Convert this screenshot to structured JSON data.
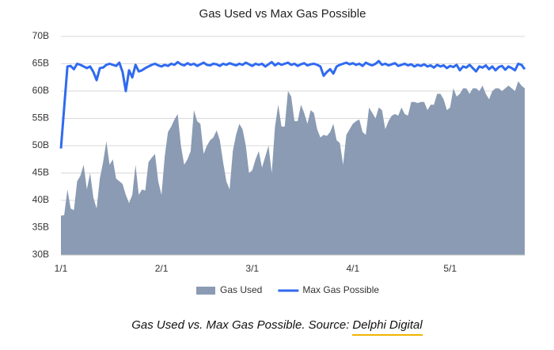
{
  "chart_data": {
    "type": "area-line",
    "title": "Gas Used vs Max Gas Possible",
    "categories": [
      "1/1",
      null,
      null,
      null,
      null,
      null,
      null,
      null,
      null,
      null,
      null,
      null,
      null,
      null,
      null,
      null,
      null,
      null,
      null,
      null,
      null,
      null,
      null,
      null,
      null,
      null,
      null,
      null,
      null,
      null,
      null,
      "2/1",
      null,
      null,
      null,
      null,
      null,
      null,
      null,
      null,
      null,
      null,
      null,
      null,
      null,
      null,
      null,
      null,
      null,
      null,
      null,
      null,
      null,
      null,
      null,
      null,
      null,
      null,
      null,
      "3/1",
      null,
      null,
      null,
      null,
      null,
      null,
      null,
      null,
      null,
      null,
      null,
      null,
      null,
      null,
      null,
      null,
      null,
      null,
      null,
      null,
      null,
      null,
      null,
      null,
      null,
      null,
      null,
      null,
      null,
      null,
      "4/1",
      null,
      null,
      null,
      null,
      null,
      null,
      null,
      null,
      null,
      null,
      null,
      null,
      null,
      null,
      null,
      null,
      null,
      null,
      null,
      null,
      null,
      null,
      null,
      null,
      null,
      null,
      null,
      null,
      null,
      "5/1",
      null,
      null,
      null,
      null,
      null,
      null,
      null,
      null,
      null,
      null,
      null,
      null,
      null,
      null,
      null,
      null,
      null,
      null,
      null,
      null,
      null,
      null,
      null
    ],
    "series": [
      {
        "name": "Gas Used",
        "kind": "area",
        "color": "#8a9bb3",
        "values": [
          37.2,
          37.3,
          42,
          38.5,
          38.2,
          43.5,
          44.5,
          46.5,
          42,
          45,
          40.5,
          38.5,
          44,
          47,
          50.8,
          46.5,
          47.5,
          44,
          43.5,
          43,
          41,
          39.5,
          41,
          46.5,
          41,
          42,
          41.8,
          47,
          47.8,
          48.5,
          43.5,
          41,
          48,
          52.5,
          53.5,
          54.8,
          55.8,
          50,
          46.5,
          47.5,
          49,
          56.5,
          54.5,
          54,
          48.5,
          50,
          51,
          51.5,
          52.8,
          51,
          47,
          43.5,
          42,
          49,
          52,
          54,
          53,
          50,
          45,
          45.5,
          47.5,
          49,
          46,
          48,
          50,
          45,
          53.5,
          57.5,
          53.5,
          53.5,
          60,
          59,
          54.5,
          54.5,
          57.5,
          56,
          54,
          56.5,
          56,
          53,
          51.5,
          52,
          51.8,
          52.5,
          54,
          51,
          50.5,
          46.5,
          52,
          53,
          54,
          54.5,
          54.8,
          52.5,
          52,
          57,
          56,
          55,
          57,
          56.5,
          53,
          54.5,
          55.5,
          55.8,
          55.5,
          57,
          55.8,
          55.5,
          58,
          58,
          57.8,
          58,
          58,
          56.5,
          57.5,
          57.5,
          59.5,
          59.5,
          58.5,
          56.5,
          57,
          60.5,
          59,
          59.5,
          60.5,
          60.5,
          59.5,
          60.5,
          60.5,
          60,
          61,
          59.5,
          58.5,
          60,
          60.5,
          60.5,
          60,
          60.5,
          61,
          60.5,
          60,
          61.8,
          61,
          60.5
        ]
      },
      {
        "name": "Max Gas Possible",
        "kind": "line",
        "color": "#2f6af0",
        "values": [
          49.5,
          57,
          64.5,
          64.6,
          64,
          65,
          64.8,
          64.5,
          64.2,
          64.5,
          63.5,
          62,
          64.2,
          64.3,
          64.8,
          65,
          64.8,
          64.6,
          65.2,
          63.5,
          60,
          63.8,
          62.5,
          64.8,
          63.6,
          63.8,
          64.2,
          64.5,
          64.8,
          65,
          64.7,
          64.5,
          64.8,
          64.6,
          65,
          64.8,
          65.3,
          64.9,
          64.7,
          65.1,
          64.8,
          65,
          64.6,
          64.9,
          65.2,
          64.8,
          64.7,
          65,
          64.9,
          64.6,
          65,
          64.8,
          65.1,
          64.9,
          64.7,
          65,
          64.8,
          65.2,
          64.9,
          64.6,
          65,
          64.8,
          65,
          64.5,
          64.9,
          65.3,
          64.7,
          65.1,
          64.8,
          65,
          65.2,
          64.8,
          65,
          64.6,
          64.9,
          65.1,
          64.7,
          64.9,
          65,
          64.8,
          64.5,
          62.8,
          63.5,
          64,
          63.2,
          64.5,
          64.8,
          65,
          65.2,
          64.9,
          65.1,
          64.8,
          65,
          64.6,
          65.2,
          64.9,
          64.7,
          65,
          65.5,
          64.8,
          65,
          64.7,
          64.9,
          65.1,
          64.6,
          64.8,
          65,
          64.7,
          64.9,
          64.5,
          64.8,
          64.6,
          64.9,
          64.5,
          64.7,
          64.3,
          64.8,
          64.5,
          64.7,
          64.2,
          64.6,
          64.4,
          64.8,
          63.8,
          64.5,
          64.3,
          64.8,
          64.2,
          63.6,
          64.5,
          64.3,
          64.7,
          64,
          64.5,
          63.8,
          64.4,
          64.6,
          63.9,
          64.5,
          64.2,
          63.8,
          65,
          64.8,
          64
        ]
      }
    ],
    "ylim": [
      30,
      70
    ],
    "yticks": [
      {
        "value": 30,
        "label": "30B"
      },
      {
        "value": 35,
        "label": "35B"
      },
      {
        "value": 40,
        "label": "40B"
      },
      {
        "value": 45,
        "label": "45B"
      },
      {
        "value": 50,
        "label": "50B"
      },
      {
        "value": 55,
        "label": "55B"
      },
      {
        "value": 60,
        "label": "60B"
      },
      {
        "value": 65,
        "label": "65B"
      },
      {
        "value": 70,
        "label": "70B"
      }
    ],
    "grid": true,
    "legend": "bottom"
  },
  "caption": {
    "text": "Gas Used vs. Max Gas Possible. Source:",
    "link": "Delphi Digital"
  }
}
